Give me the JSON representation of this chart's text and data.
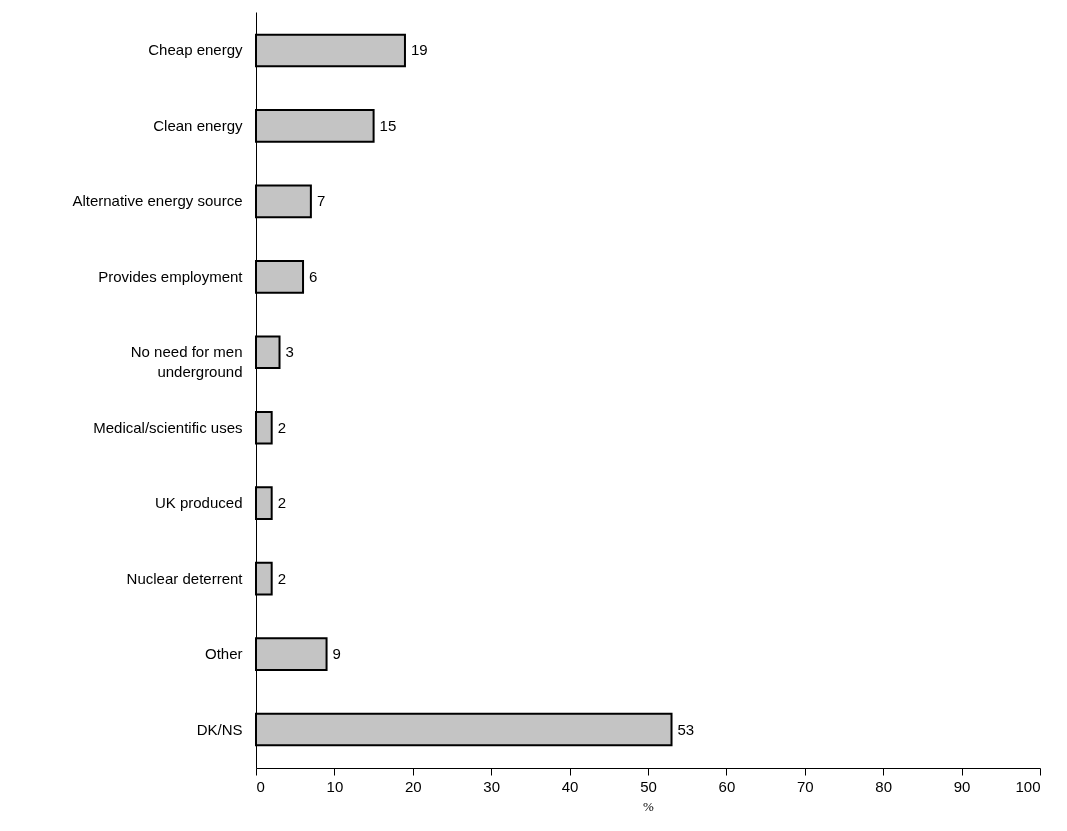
{
  "chart_data": {
    "type": "bar",
    "orientation": "horizontal",
    "xlabel": "%",
    "categories": [
      "Cheap energy",
      "Clean energy",
      "Alternative energy source",
      "Provides employment",
      "No need for men underground",
      "Medical/scientific uses",
      "UK produced",
      "Nuclear deterrent",
      "Other",
      "DK/NS"
    ],
    "values": [
      19,
      15,
      7,
      6,
      3,
      2,
      2,
      2,
      9,
      53
    ],
    "color": "#c4c4c4",
    "xlim": [
      0,
      100
    ],
    "xticks": [
      0,
      10,
      20,
      30,
      40,
      50,
      60,
      70,
      80,
      90,
      100
    ],
    "data_labels": true
  }
}
